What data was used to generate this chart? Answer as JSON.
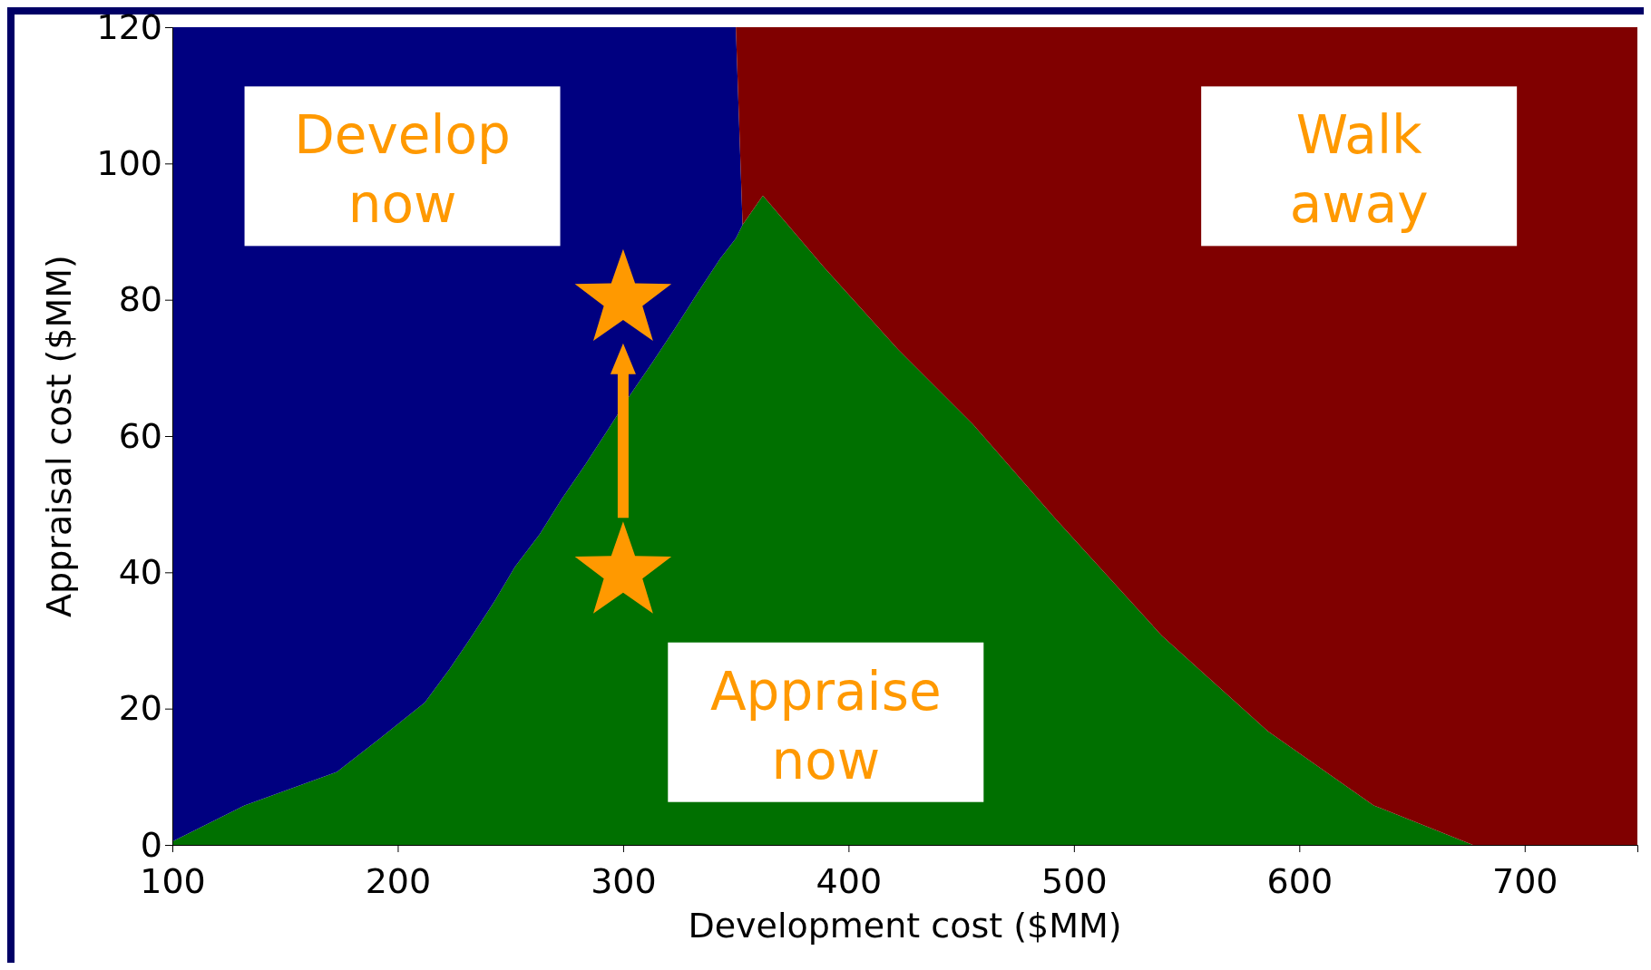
{
  "chart_data": {
    "type": "area",
    "stacked": true,
    "xlabel": "Development cost ($MM)",
    "ylabel": "Appraisal cost ($MM)",
    "x": [
      100,
      132,
      173,
      192,
      212,
      223,
      233,
      243,
      252,
      263,
      273,
      283,
      293,
      303,
      313,
      323,
      333,
      343,
      350,
      353,
      362,
      389,
      422,
      455,
      492,
      539,
      586,
      633,
      677,
      750
    ],
    "series": [
      {
        "color": "#007000",
        "values": [
          0.5,
          5.8,
          10.7,
          15.6,
          20.9,
          25.8,
          30.7,
          35.8,
          40.8,
          45.6,
          50.9,
          55.7,
          60.8,
          66,
          70.8,
          75.8,
          81,
          86,
          89,
          91,
          95.3,
          84.8,
          72.7,
          61.8,
          47.8,
          30.7,
          16.7,
          5.8,
          0,
          0
        ]
      },
      {
        "color": "#000080",
        "values": [
          119.5,
          114.2,
          109.3,
          104.4,
          99.1,
          94.2,
          89.3,
          84.2,
          79.2,
          74.4,
          69.1,
          64.3,
          59.2,
          54,
          49.2,
          44.2,
          39,
          34,
          31,
          0,
          null,
          null,
          null,
          null,
          null,
          null,
          null,
          null,
          null,
          null
        ]
      },
      {
        "color": "#800000",
        "values": [
          null,
          null,
          null,
          null,
          null,
          null,
          null,
          null,
          null,
          null,
          null,
          null,
          null,
          null,
          null,
          null,
          null,
          null,
          0,
          29,
          24.7,
          35.2,
          47.3,
          58.2,
          72.2,
          89.3,
          103.3,
          114.2,
          120,
          120
        ]
      },
      {
        "type": "scatter",
        "color": "#ff9900",
        "marker": "star",
        "x": [
          300,
          300
        ],
        "values": [
          80,
          40
        ]
      }
    ],
    "xlim": [
      100,
      750
    ],
    "xticks": [
      100,
      200,
      300,
      400,
      500,
      600,
      700
    ],
    "ylim": [
      0,
      120
    ],
    "yticks": [
      0,
      20,
      40,
      60,
      80,
      100,
      120
    ],
    "annotations": [
      "Develop now",
      "Walk away",
      "Appraise now"
    ]
  }
}
